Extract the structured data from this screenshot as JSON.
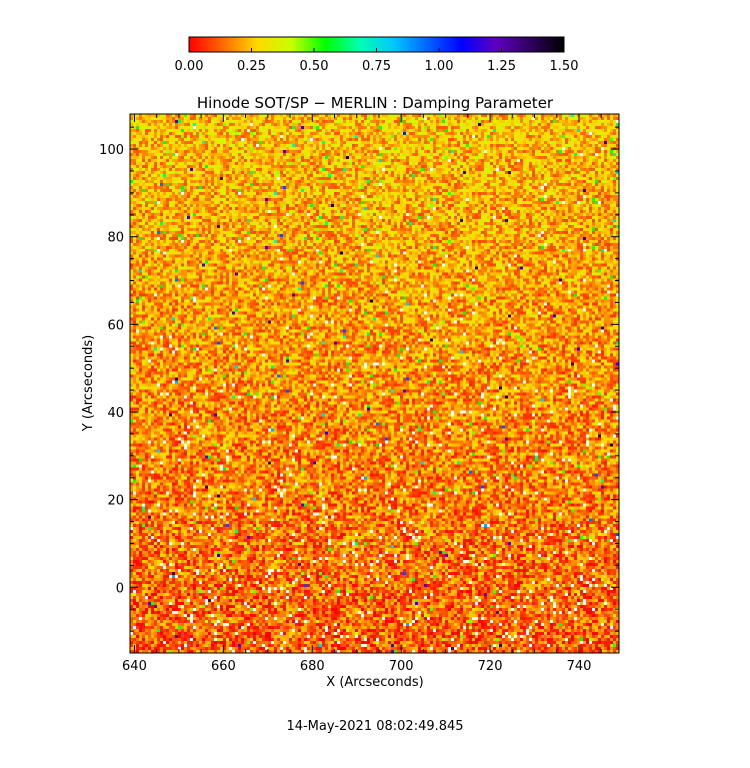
{
  "chart_data": {
    "type": "heatmap",
    "title": "Hinode SOT/SP − MERLIN : Damping Parameter",
    "xlabel": "X (Arcseconds)",
    "ylabel": "Y (Arcseconds)",
    "xlim": [
      639,
      749
    ],
    "ylim": [
      -15,
      108
    ],
    "x_ticks": [
      "640",
      "660",
      "680",
      "700",
      "720",
      "740"
    ],
    "y_ticks": [
      "0",
      "20",
      "40",
      "60",
      "80",
      "100"
    ],
    "colorbar": {
      "range": [
        0.0,
        1.5
      ],
      "ticks": [
        "0.00",
        "0.25",
        "0.50",
        "0.75",
        "1.00",
        "1.25",
        "1.50"
      ],
      "colors": [
        "#ff0000",
        "#ff6a00",
        "#ffd800",
        "#c8ff00",
        "#00ff00",
        "#00ffb0",
        "#00c8ff",
        "#0064ff",
        "#0000ff",
        "#6000c0",
        "#300060",
        "#000000"
      ]
    },
    "description_values": {
      "typical_value_range": [
        0.05,
        0.45
      ],
      "dominant_value_lower_region": 0.12,
      "dominant_value_upper_region": 0.25,
      "missing_pixels": "white"
    }
  },
  "footer": {
    "timestamp": "14-May-2021 08:02:49.845"
  }
}
